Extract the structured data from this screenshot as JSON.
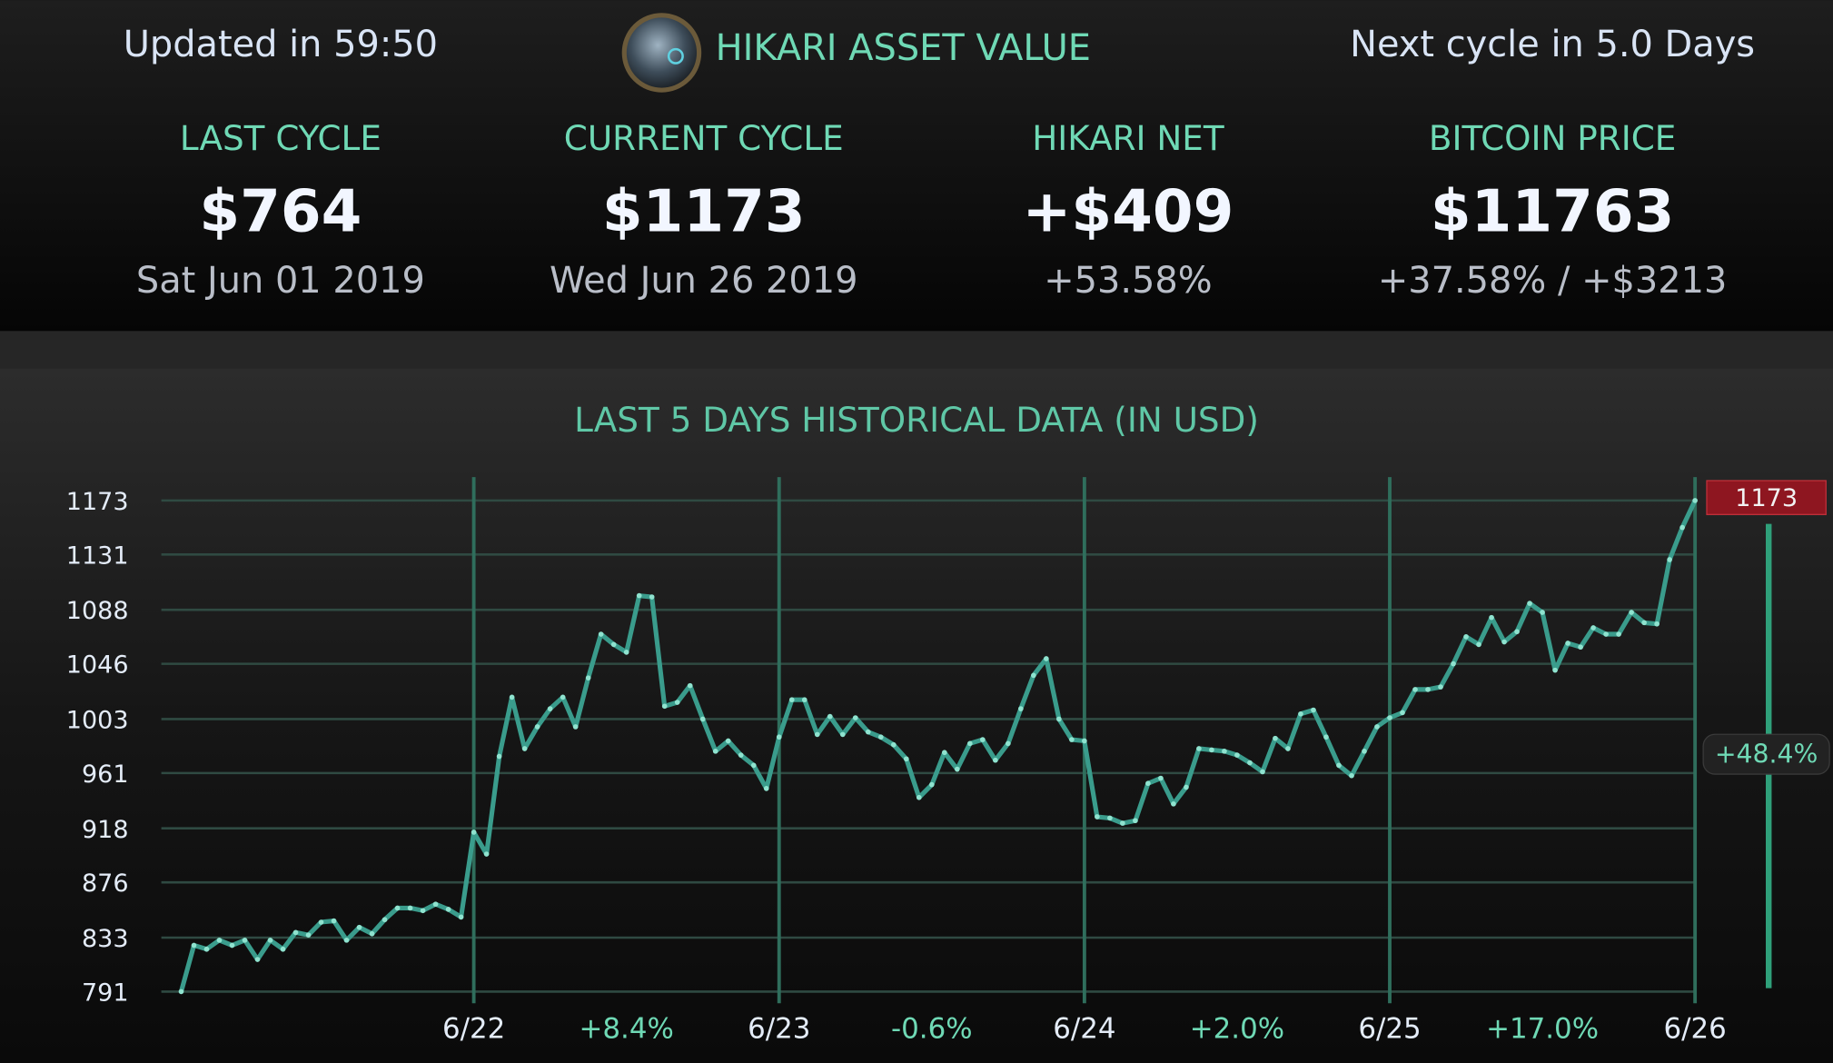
{
  "header": {
    "updated": "Updated in 59:50",
    "title": "HIKARI ASSET VALUE",
    "next_cycle": "Next cycle in 5.0 Days"
  },
  "stats": [
    {
      "label": "LAST CYCLE",
      "value": "$764",
      "sub": "Sat Jun 01 2019"
    },
    {
      "label": "CURRENT CYCLE",
      "value": "$1173",
      "sub": "Wed Jun 26 2019"
    },
    {
      "label": "HIKARI NET",
      "value": "+$409",
      "sub": "+53.58%"
    },
    {
      "label": "BITCOIN PRICE",
      "value": "$11763",
      "sub": "+37.58% / +$3213"
    }
  ],
  "chart_data": {
    "type": "line",
    "title": "LAST 5 DAYS HISTORICAL DATA (IN USD)",
    "color": "#3a9c8c",
    "marker_color": "#8fe3cf",
    "values": [
      791,
      827,
      824,
      831,
      827,
      831,
      816,
      831,
      824,
      837,
      835,
      845,
      846,
      831,
      841,
      836,
      847,
      856,
      856,
      854,
      859,
      855,
      849,
      915,
      898,
      974,
      1020,
      980,
      997,
      1011,
      1020,
      997,
      1035,
      1069,
      1061,
      1055,
      1099,
      1098,
      1013,
      1016,
      1029,
      1003,
      978,
      986,
      975,
      967,
      949,
      989,
      1018,
      1018,
      991,
      1005,
      991,
      1004,
      993,
      989,
      983,
      972,
      942,
      952,
      977,
      964,
      984,
      987,
      971,
      984,
      1011,
      1037,
      1050,
      1003,
      987,
      986,
      927,
      926,
      922,
      924,
      953,
      957,
      937,
      950,
      980,
      979,
      978,
      975,
      969,
      962,
      988,
      980,
      1007,
      1010,
      989,
      967,
      959,
      978,
      997,
      1004,
      1008,
      1026,
      1026,
      1028,
      1046,
      1067,
      1061,
      1082,
      1063,
      1071,
      1093,
      1086,
      1041,
      1062,
      1059,
      1074,
      1069,
      1069,
      1086,
      1078,
      1077,
      1127,
      1152,
      1173
    ],
    "ylim": [
      791,
      1173
    ],
    "yticks": [
      791,
      833,
      876,
      918,
      961,
      1003,
      1046,
      1088,
      1131,
      1173
    ],
    "xlim": [
      0,
      119
    ],
    "xticks": [
      {
        "value": 23,
        "label": "6/22"
      },
      {
        "value": 47,
        "label": "6/23"
      },
      {
        "value": 71,
        "label": "6/24"
      },
      {
        "value": 95,
        "label": "6/25"
      },
      {
        "value": 119,
        "label": "6/26"
      }
    ],
    "period_changes": [
      "+8.4%",
      "-0.6%",
      "+2.0%",
      "+17.0%"
    ],
    "total_change": "+48.4%",
    "grid": true
  }
}
